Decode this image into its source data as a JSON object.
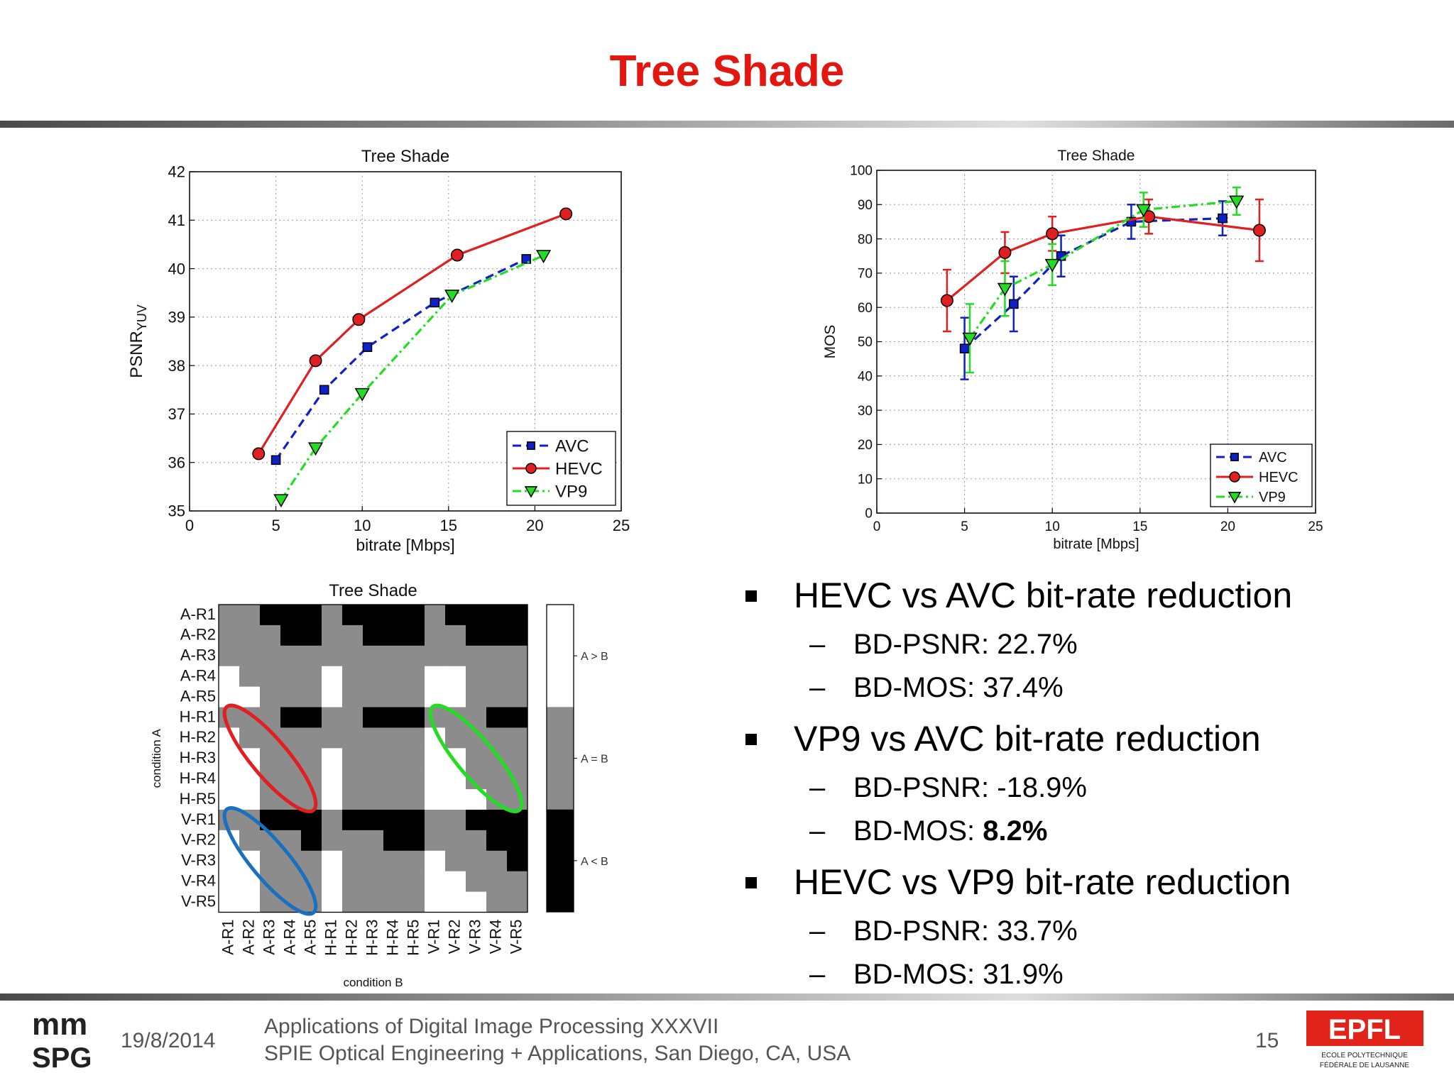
{
  "slide": {
    "title": "Tree Shade",
    "date": "19/8/2014",
    "footer_line1": "Applications of Digital Image Processing XXXVII",
    "footer_line2": "SPIE Optical Engineering + Applications, San Diego, CA, USA",
    "page_number": "15",
    "logo_left": [
      "mm",
      "SPG"
    ],
    "logo_right": [
      "EPFL",
      "ECOLE POLYTECHNIQUE",
      "FÉDÉRALE DE LAUSANNE"
    ]
  },
  "bullets": [
    {
      "heading": "HEVC vs AVC bit-rate reduction",
      "items": [
        {
          "label": "BD-PSNR: ",
          "value": "22.7%",
          "bold": false
        },
        {
          "label": "BD-MOS: ",
          "value": "37.4%",
          "bold": false
        }
      ]
    },
    {
      "heading": "VP9 vs AVC bit-rate reduction",
      "items": [
        {
          "label": "BD-PSNR: ",
          "value": "-18.9%",
          "bold": false
        },
        {
          "label": "BD-MOS: ",
          "value": "8.2%",
          "bold": true
        }
      ]
    },
    {
      "heading": "HEVC vs VP9 bit-rate reduction",
      "items": [
        {
          "label": "BD-PSNR: ",
          "value": "33.7%",
          "bold": false
        },
        {
          "label": "BD-MOS: ",
          "value": "31.9%",
          "bold": false
        }
      ]
    }
  ],
  "colors": {
    "title": "#e3170f",
    "avc": "#1020c8",
    "hevc": "#e02020",
    "vp9": "#22dd22"
  },
  "chart_data": [
    {
      "type": "line",
      "title": "Tree Shade",
      "xlabel": "bitrate [Mbps]",
      "ylabel": "PSNR",
      "ylabel_sub": "YUV",
      "xlim": [
        0,
        25
      ],
      "ylim": [
        35,
        42
      ],
      "xticks": [
        0,
        5,
        10,
        15,
        20,
        25
      ],
      "yticks": [
        35,
        36,
        37,
        38,
        39,
        40,
        41,
        42
      ],
      "grid": true,
      "legend": "bottom-right",
      "series": [
        {
          "name": "AVC",
          "x": [
            5.0,
            7.8,
            10.3,
            14.2,
            19.5
          ],
          "y": [
            36.05,
            37.5,
            38.38,
            39.3,
            40.2
          ]
        },
        {
          "name": "HEVC",
          "x": [
            4.0,
            7.3,
            9.8,
            15.5,
            21.8
          ],
          "y": [
            36.18,
            38.1,
            38.95,
            40.28,
            41.13
          ]
        },
        {
          "name": "VP9",
          "x": [
            5.3,
            7.3,
            10.0,
            15.2,
            20.5
          ],
          "y": [
            35.23,
            36.3,
            37.42,
            39.45,
            40.27
          ]
        }
      ]
    },
    {
      "type": "line",
      "title": "Tree Shade",
      "xlabel": "bitrate [Mbps]",
      "ylabel": "MOS",
      "xlim": [
        0,
        25
      ],
      "ylim": [
        0,
        100
      ],
      "xticks": [
        0,
        5,
        10,
        15,
        20,
        25
      ],
      "yticks": [
        0,
        10,
        20,
        30,
        40,
        50,
        60,
        70,
        80,
        90,
        100
      ],
      "grid": true,
      "legend": "bottom-right",
      "series": [
        {
          "name": "AVC",
          "x": [
            5.0,
            7.8,
            10.5,
            14.5,
            19.7
          ],
          "y": [
            48,
            61,
            75,
            85,
            86
          ],
          "err": [
            9,
            8,
            6,
            5,
            5
          ]
        },
        {
          "name": "HEVC",
          "x": [
            4.0,
            7.3,
            10.0,
            15.5,
            21.8
          ],
          "y": [
            62,
            76,
            81.5,
            86.5,
            82.5
          ],
          "err": [
            9,
            6,
            5,
            5,
            9
          ]
        },
        {
          "name": "VP9",
          "x": [
            5.3,
            7.3,
            10.0,
            15.2,
            20.5
          ],
          "y": [
            51,
            65.5,
            72.5,
            88.5,
            91
          ],
          "err": [
            10,
            8,
            6,
            5,
            4
          ]
        }
      ]
    },
    {
      "type": "heatmap",
      "title": "Tree Shade",
      "xlabel": "condition B",
      "ylabel": "condition A",
      "labels": [
        "A-R1",
        "A-R2",
        "A-R3",
        "A-R4",
        "A-R5",
        "H-R1",
        "H-R2",
        "H-R3",
        "H-R4",
        "H-R5",
        "V-R1",
        "V-R2",
        "V-R3",
        "V-R4",
        "V-R5"
      ],
      "colorbar": [
        "A > B",
        "A = B",
        "A < B"
      ],
      "matrix": [
        [
          0,
          0,
          -1,
          -1,
          -1,
          0,
          -1,
          -1,
          -1,
          -1,
          0,
          -1,
          -1,
          -1,
          -1
        ],
        [
          0,
          0,
          0,
          -1,
          -1,
          0,
          0,
          -1,
          -1,
          -1,
          0,
          0,
          -1,
          -1,
          -1
        ],
        [
          0,
          0,
          0,
          0,
          0,
          0,
          0,
          0,
          0,
          0,
          0,
          0,
          0,
          0,
          0
        ],
        [
          1,
          0,
          0,
          0,
          0,
          1,
          0,
          0,
          0,
          0,
          1,
          1,
          0,
          0,
          0
        ],
        [
          1,
          1,
          0,
          0,
          0,
          1,
          0,
          0,
          0,
          0,
          1,
          1,
          0,
          0,
          0
        ],
        [
          0,
          0,
          0,
          -1,
          -1,
          0,
          0,
          -1,
          -1,
          -1,
          0,
          0,
          0,
          -1,
          -1
        ],
        [
          1,
          0,
          0,
          0,
          0,
          0,
          0,
          0,
          0,
          0,
          1,
          0,
          0,
          0,
          0
        ],
        [
          1,
          1,
          0,
          0,
          0,
          1,
          0,
          0,
          0,
          0,
          1,
          1,
          0,
          0,
          0
        ],
        [
          1,
          1,
          0,
          0,
          0,
          1,
          0,
          0,
          0,
          0,
          1,
          1,
          0,
          0,
          0
        ],
        [
          1,
          1,
          0,
          0,
          0,
          1,
          0,
          0,
          0,
          0,
          1,
          1,
          1,
          0,
          0
        ],
        [
          0,
          0,
          -1,
          -1,
          -1,
          0,
          -1,
          -1,
          -1,
          -1,
          0,
          0,
          -1,
          -1,
          -1
        ],
        [
          1,
          0,
          0,
          0,
          -1,
          0,
          0,
          0,
          -1,
          -1,
          0,
          0,
          0,
          -1,
          -1
        ],
        [
          1,
          1,
          0,
          0,
          0,
          1,
          0,
          0,
          0,
          0,
          1,
          0,
          0,
          0,
          -1
        ],
        [
          1,
          1,
          0,
          0,
          0,
          1,
          0,
          0,
          0,
          0,
          1,
          1,
          0,
          0,
          0
        ],
        [
          1,
          1,
          0,
          0,
          0,
          1,
          0,
          0,
          0,
          0,
          1,
          1,
          1,
          0,
          0
        ]
      ],
      "annotations": [
        {
          "shape": "ellipse",
          "color": "red",
          "from": "H-R1 x A-R1",
          "to": "H-R5 x A-R5"
        },
        {
          "shape": "ellipse",
          "color": "green",
          "from": "H-R1 x V-R1",
          "to": "H-R5 x V-R5"
        },
        {
          "shape": "ellipse",
          "color": "blue",
          "from": "V-R1 x A-R1",
          "to": "V-R5 x A-R5"
        }
      ]
    }
  ]
}
